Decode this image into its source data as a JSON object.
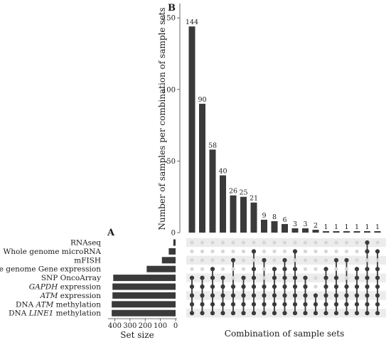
{
  "panels": {
    "a": "A",
    "b": "B"
  },
  "colors": {
    "bar": "#3a3a3a",
    "dot_on": "#3a3a3a",
    "dot_off": "#d6d6d6",
    "stripe": "#ececec",
    "axis": "#444444"
  },
  "chart_data": [
    {
      "type": "bar",
      "name": "intersection_sizes",
      "ylabel": "Number of samples per combination of sample sets",
      "xlabel": "Combination of sample sets",
      "ylim": [
        0,
        160
      ],
      "yticks": [
        "0",
        "50",
        "100",
        "150"
      ],
      "values": [
        144,
        90,
        58,
        40,
        26,
        25,
        21,
        9,
        8,
        6,
        3,
        3,
        2,
        1,
        1,
        1,
        1,
        1,
        1
      ],
      "value_labels": [
        "144",
        "90",
        "58",
        "40",
        "26",
        "25",
        "21",
        "9",
        "8",
        "6",
        "3",
        "3",
        "2",
        "1",
        "1",
        "1",
        "1",
        "1",
        "1"
      ]
    },
    {
      "type": "bar",
      "name": "set_sizes",
      "orientation": "horizontal",
      "xlabel": "Set size",
      "xlim": [
        0,
        430
      ],
      "xticks": [
        "400",
        "300",
        "200",
        "100",
        "0"
      ],
      "sets": [
        {
          "label_pre": "",
          "label_it": "",
          "label_post": "RNAseq",
          "size": 15
        },
        {
          "label_pre": "",
          "label_it": "",
          "label_post": "Whole genome microRNA",
          "size": 45
        },
        {
          "label_pre": "",
          "label_it": "",
          "label_post": "mFISH",
          "size": 90
        },
        {
          "label_pre": "",
          "label_it": "",
          "label_post": "Whole genome Gene expression",
          "size": 190
        },
        {
          "label_pre": "",
          "label_it": "",
          "label_post": "SNP OncoArray",
          "size": 410
        },
        {
          "label_pre": "",
          "label_it": "GAPDH",
          "label_post": " expression",
          "size": 415
        },
        {
          "label_pre": "",
          "label_it": "ATM",
          "label_post": " expression",
          "size": 415
        },
        {
          "label_pre": "DNA ",
          "label_it": "ATM",
          "label_post": " methylation",
          "size": 420
        },
        {
          "label_pre": "DNA ",
          "label_it": "LINE1",
          "label_post": " methylation",
          "size": 420
        }
      ]
    },
    {
      "type": "matrix",
      "name": "combination_matrix",
      "note": "rows follow set order (top to bottom), columns follow intersection order",
      "rows": [
        [
          0,
          0,
          0,
          0,
          0,
          0,
          0,
          0,
          0,
          0,
          0,
          0,
          0,
          0,
          0,
          0,
          0,
          1,
          0
        ],
        [
          0,
          0,
          0,
          0,
          0,
          0,
          1,
          0,
          0,
          0,
          1,
          0,
          0,
          0,
          0,
          0,
          0,
          1,
          1
        ],
        [
          0,
          0,
          0,
          0,
          1,
          0,
          0,
          1,
          0,
          1,
          0,
          0,
          0,
          0,
          1,
          1,
          0,
          0,
          0
        ],
        [
          0,
          0,
          1,
          0,
          0,
          0,
          1,
          0,
          1,
          1,
          1,
          0,
          0,
          1,
          0,
          0,
          1,
          1,
          1
        ],
        [
          1,
          1,
          1,
          1,
          0,
          1,
          1,
          0,
          1,
          1,
          1,
          1,
          0,
          1,
          1,
          0,
          1,
          1,
          1
        ],
        [
          1,
          1,
          1,
          1,
          1,
          1,
          1,
          1,
          1,
          1,
          1,
          1,
          0,
          1,
          1,
          1,
          1,
          1,
          1
        ],
        [
          1,
          1,
          1,
          1,
          1,
          1,
          1,
          1,
          1,
          1,
          1,
          1,
          1,
          1,
          1,
          1,
          1,
          1,
          1
        ],
        [
          1,
          1,
          1,
          1,
          1,
          1,
          1,
          1,
          1,
          1,
          1,
          1,
          1,
          1,
          1,
          1,
          1,
          1,
          1
        ],
        [
          1,
          1,
          1,
          1,
          1,
          1,
          1,
          1,
          1,
          1,
          1,
          1,
          1,
          1,
          1,
          1,
          1,
          1,
          1
        ]
      ]
    }
  ]
}
